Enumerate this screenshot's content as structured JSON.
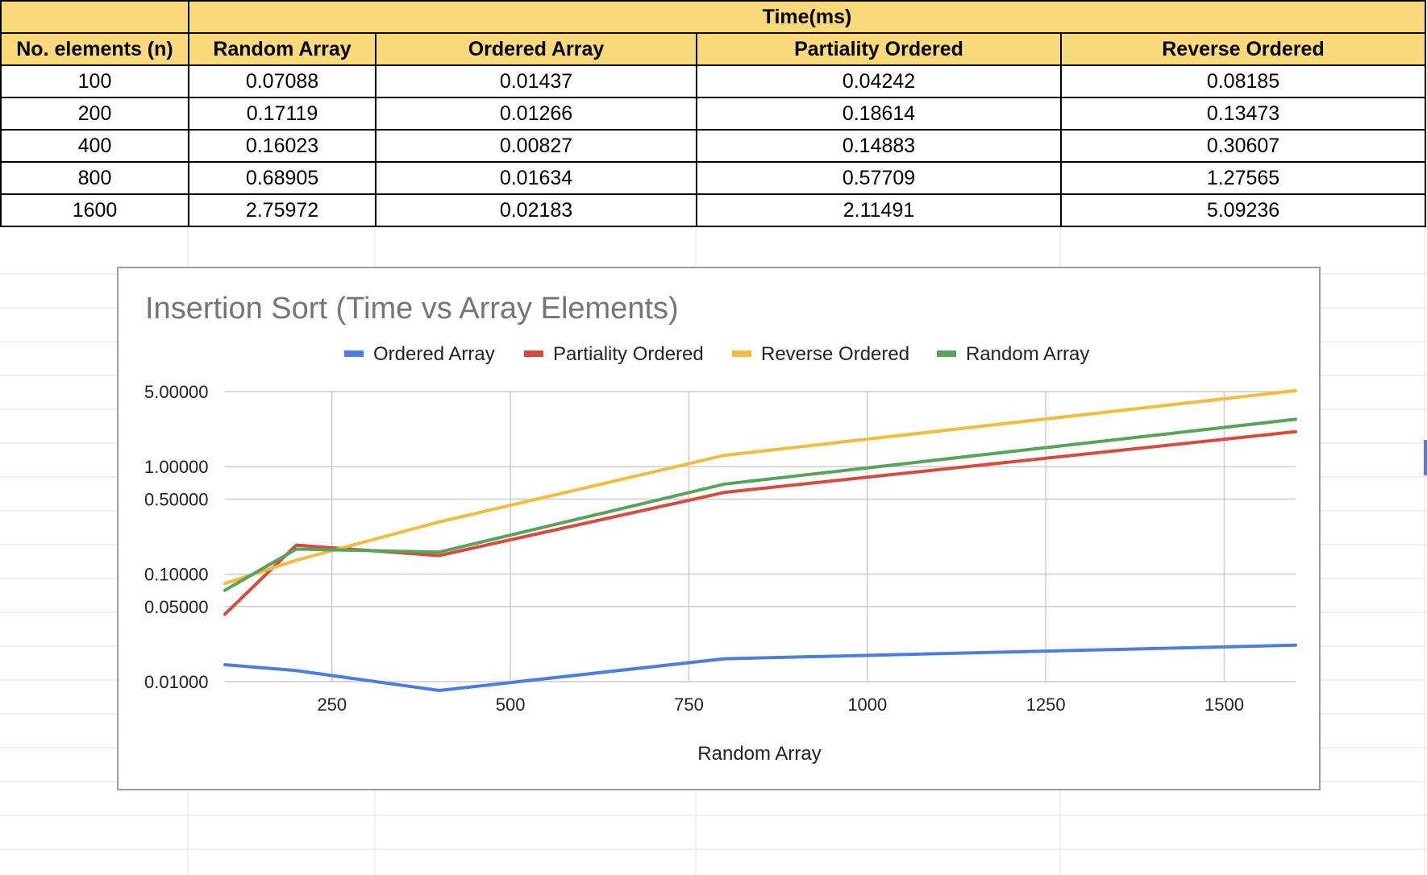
{
  "table": {
    "group_header": "Time(ms)",
    "columns": [
      "No. elements (n)",
      "Random Array",
      "Ordered Array",
      "Partiality Ordered",
      "Reverse Ordered"
    ],
    "rows": [
      [
        "100",
        "0.07088",
        "0.01437",
        "0.04242",
        "0.08185"
      ],
      [
        "200",
        "0.17119",
        "0.01266",
        "0.18614",
        "0.13473"
      ],
      [
        "400",
        "0.16023",
        "0.00827",
        "0.14883",
        "0.30607"
      ],
      [
        "800",
        "0.68905",
        "0.01634",
        "0.57709",
        "1.27565"
      ],
      [
        "1600",
        "2.75972",
        "0.02183",
        "2.11491",
        "5.09236"
      ]
    ]
  },
  "chart_data": {
    "type": "line",
    "title": "Insertion Sort (Time vs Array Elements)",
    "xlabel": "Random Array",
    "ylabel": "",
    "x": [
      100,
      200,
      400,
      800,
      1600
    ],
    "xlim": [
      100,
      1600
    ],
    "xticks": [
      250,
      500,
      750,
      1000,
      1250,
      1500
    ],
    "yscale": "log",
    "ylim": [
      0.01,
      5.0
    ],
    "yticks": [
      0.01,
      0.05,
      0.1,
      0.5,
      1.0,
      5.0
    ],
    "ytick_labels": [
      "0.01000",
      "0.05000",
      "0.10000",
      "0.50000",
      "1.00000",
      "5.00000"
    ],
    "grid": true,
    "legend_position": "top",
    "series": [
      {
        "name": "Ordered Array",
        "color": "#4a7fe0",
        "values": [
          0.01437,
          0.01266,
          0.00827,
          0.01634,
          0.02183
        ]
      },
      {
        "name": "Partiality Ordered",
        "color": "#d9493c",
        "values": [
          0.04242,
          0.18614,
          0.14883,
          0.57709,
          2.11491
        ]
      },
      {
        "name": "Reverse Ordered",
        "color": "#f2bc3e",
        "values": [
          0.08185,
          0.13473,
          0.30607,
          1.27565,
          5.09236
        ]
      },
      {
        "name": "Random Array",
        "color": "#56a35a",
        "values": [
          0.07088,
          0.17119,
          0.16023,
          0.68905,
          2.75972
        ]
      }
    ]
  }
}
